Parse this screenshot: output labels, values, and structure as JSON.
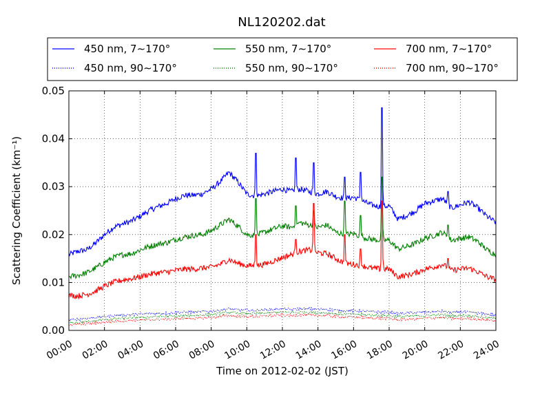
{
  "chart_data": {
    "type": "line",
    "title": "NL120202.dat",
    "xlabel": "Time on 2012-02-02 (JST)",
    "ylabel": "Scattering Coefficient (km⁻¹)",
    "xlim": [
      0,
      24
    ],
    "ylim": [
      0,
      0.05
    ],
    "x_ticks": [
      "00:00",
      "02:00",
      "04:00",
      "06:00",
      "08:00",
      "10:00",
      "12:00",
      "14:00",
      "16:00",
      "18:00",
      "20:00",
      "22:00",
      "24:00"
    ],
    "y_ticks": [
      "0.00",
      "0.01",
      "0.02",
      "0.03",
      "0.04",
      "0.05"
    ],
    "grid": true,
    "legend_placement": "top, above plot, 3 columns",
    "x_hours": [
      0,
      0.5,
      1,
      1.5,
      2,
      2.5,
      3,
      3.5,
      4,
      4.5,
      5,
      5.5,
      6,
      6.5,
      7,
      7.5,
      8,
      8.5,
      9,
      9.5,
      10,
      10.5,
      11,
      11.5,
      12,
      12.5,
      13,
      13.5,
      14,
      14.5,
      15,
      15.5,
      16,
      16.5,
      17,
      17.5,
      18,
      18.5,
      19,
      19.5,
      20,
      20.5,
      21,
      21.5,
      22,
      22.5,
      23,
      23.5,
      24
    ],
    "series": [
      {
        "name": "450 nm, 7∼170°",
        "color": "#0000ff",
        "style": "solid",
        "values": [
          0.0158,
          0.0165,
          0.0168,
          0.0182,
          0.02,
          0.0215,
          0.0222,
          0.0228,
          0.0238,
          0.025,
          0.0258,
          0.0265,
          0.0275,
          0.0282,
          0.0282,
          0.0285,
          0.0295,
          0.031,
          0.033,
          0.031,
          0.0285,
          0.028,
          0.0285,
          0.029,
          0.0295,
          0.029,
          0.0295,
          0.029,
          0.0285,
          0.029,
          0.028,
          0.0275,
          0.0278,
          0.027,
          0.0262,
          0.0258,
          0.026,
          0.0232,
          0.024,
          0.025,
          0.0265,
          0.027,
          0.0275,
          0.0255,
          0.0262,
          0.0268,
          0.0255,
          0.0238,
          0.0225
        ]
      },
      {
        "name": "550 nm, 7∼170°",
        "color": "#008000",
        "style": "solid",
        "values": [
          0.0112,
          0.0115,
          0.012,
          0.013,
          0.0142,
          0.0152,
          0.0158,
          0.016,
          0.0168,
          0.0175,
          0.018,
          0.0183,
          0.019,
          0.0195,
          0.0198,
          0.02,
          0.0208,
          0.022,
          0.0232,
          0.0218,
          0.02,
          0.0198,
          0.0205,
          0.0212,
          0.0218,
          0.0215,
          0.0225,
          0.022,
          0.0215,
          0.022,
          0.0205,
          0.02,
          0.0202,
          0.0195,
          0.019,
          0.0188,
          0.0188,
          0.017,
          0.0175,
          0.0182,
          0.0192,
          0.0198,
          0.0205,
          0.0188,
          0.0192,
          0.0195,
          0.0185,
          0.0168,
          0.0158
        ]
      },
      {
        "name": "700 nm, 7∼170°",
        "color": "#ff0000",
        "style": "solid",
        "values": [
          0.0073,
          0.0072,
          0.0075,
          0.0082,
          0.0092,
          0.01,
          0.0105,
          0.0108,
          0.0112,
          0.0117,
          0.012,
          0.0122,
          0.0125,
          0.0128,
          0.0128,
          0.013,
          0.0132,
          0.0138,
          0.0148,
          0.014,
          0.0135,
          0.0135,
          0.0138,
          0.0145,
          0.0152,
          0.0158,
          0.0165,
          0.0168,
          0.0162,
          0.016,
          0.015,
          0.014,
          0.0138,
          0.0135,
          0.013,
          0.0128,
          0.0128,
          0.0112,
          0.0115,
          0.012,
          0.0128,
          0.0132,
          0.0138,
          0.0125,
          0.0128,
          0.013,
          0.0122,
          0.0112,
          0.0106
        ]
      },
      {
        "name": "450 nm, 90∼170°",
        "color": "#0000ff",
        "style": "dotted",
        "values": [
          0.0022,
          0.0023,
          0.0025,
          0.0027,
          0.0029,
          0.0031,
          0.0032,
          0.0033,
          0.0034,
          0.0035,
          0.0036,
          0.0036,
          0.0037,
          0.0038,
          0.0038,
          0.0039,
          0.004,
          0.0042,
          0.0045,
          0.0043,
          0.0042,
          0.0042,
          0.0043,
          0.0044,
          0.0045,
          0.0044,
          0.0045,
          0.0045,
          0.0044,
          0.0044,
          0.0042,
          0.0041,
          0.0041,
          0.004,
          0.0039,
          0.0038,
          0.0038,
          0.0035,
          0.0036,
          0.0037,
          0.0038,
          0.0039,
          0.004,
          0.0037,
          0.0038,
          0.0038,
          0.0036,
          0.0034,
          0.0032
        ]
      },
      {
        "name": "550 nm, 90∼170°",
        "color": "#008000",
        "style": "dotted",
        "values": [
          0.0016,
          0.0017,
          0.0018,
          0.002,
          0.0022,
          0.0024,
          0.0025,
          0.0026,
          0.0027,
          0.0028,
          0.0029,
          0.0029,
          0.003,
          0.0031,
          0.0031,
          0.0032,
          0.0033,
          0.0035,
          0.0038,
          0.0036,
          0.0035,
          0.0035,
          0.0036,
          0.0037,
          0.0038,
          0.0037,
          0.0038,
          0.0038,
          0.0037,
          0.0037,
          0.0035,
          0.0034,
          0.0034,
          0.0033,
          0.0032,
          0.0031,
          0.0031,
          0.0028,
          0.0029,
          0.003,
          0.0031,
          0.0032,
          0.0033,
          0.003,
          0.0031,
          0.0031,
          0.0029,
          0.0027,
          0.0025
        ]
      },
      {
        "name": "700 nm, 90∼170°",
        "color": "#ff0000",
        "style": "dotted",
        "values": [
          0.0012,
          0.0013,
          0.0014,
          0.0015,
          0.0017,
          0.0019,
          0.002,
          0.0021,
          0.0022,
          0.0022,
          0.0023,
          0.0023,
          0.0024,
          0.0025,
          0.0025,
          0.0026,
          0.0027,
          0.0029,
          0.0031,
          0.003,
          0.0029,
          0.0029,
          0.003,
          0.0031,
          0.0032,
          0.0031,
          0.0032,
          0.0032,
          0.0031,
          0.0031,
          0.0029,
          0.0028,
          0.0028,
          0.0027,
          0.0026,
          0.0025,
          0.0025,
          0.0022,
          0.0023,
          0.0024,
          0.0025,
          0.0026,
          0.0027,
          0.0024,
          0.0025,
          0.0025,
          0.0023,
          0.0022,
          0.002
        ]
      }
    ],
    "spikes": [
      {
        "x": 10.5,
        "values": [
          0.037,
          0.0275,
          0.02
        ]
      },
      {
        "x": 12.75,
        "values": [
          0.036,
          0.026,
          0.019
        ]
      },
      {
        "x": 13.75,
        "values": [
          0.035,
          0.025,
          0.0265
        ]
      },
      {
        "x": 15.5,
        "values": [
          0.032,
          0.027,
          0.02
        ]
      },
      {
        "x": 16.4,
        "values": [
          0.033,
          0.024,
          0.017
        ]
      },
      {
        "x": 17.6,
        "values": [
          0.0465,
          0.032,
          0.027
        ]
      },
      {
        "x": 21.3,
        "values": [
          0.029,
          0.022,
          0.015
        ]
      }
    ]
  }
}
